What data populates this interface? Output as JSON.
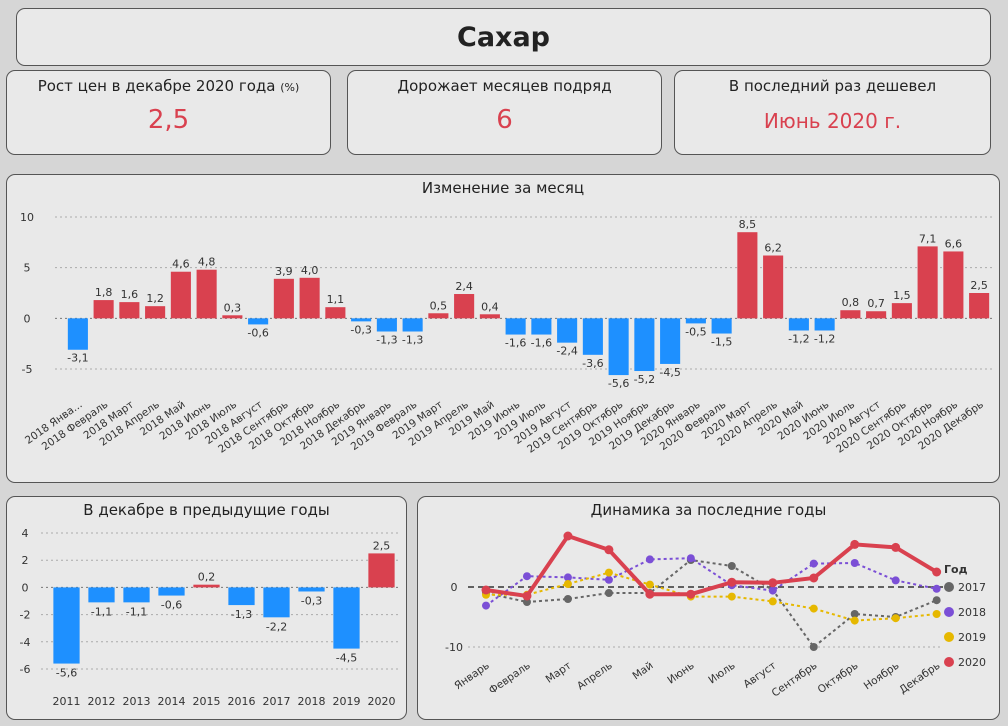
{
  "header": {
    "title": "Сахар"
  },
  "cards": [
    {
      "label": "Рост цен в декабре 2020 года",
      "label_suffix": "(%)",
      "value": "2,5"
    },
    {
      "label": "Дорожает месяцев подряд",
      "value": "6"
    },
    {
      "label": "В последний раз дешевел",
      "value": "Июнь 2020 г."
    }
  ],
  "colors": {
    "positive": "#d9414f",
    "negative": "#1e90ff",
    "panel_bg": "#e9e9e9",
    "page_bg": "#d6d6d6"
  },
  "chart_data": [
    {
      "type": "bar",
      "title": "Изменение за месяц",
      "ylim": [
        -5,
        10
      ],
      "yticks": [
        -5,
        0,
        5,
        10
      ],
      "categories": [
        "2018 Янва...",
        "2018 Февраль",
        "2018 Март",
        "2018 Апрель",
        "2018 Май",
        "2018 Июнь",
        "2018 Июль",
        "2018 Август",
        "2018 Сентябрь",
        "2018 Октябрь",
        "2018 Ноябрь",
        "2018 Декабрь",
        "2019 Январь",
        "2019 Февраль",
        "2019 Март",
        "2019 Апрель",
        "2019 Май",
        "2019 Июнь",
        "2019 Июль",
        "2019 Август",
        "2019 Сентябрь",
        "2019 Октябрь",
        "2019 Ноябрь",
        "2019 Декабрь",
        "2020 Январь",
        "2020 Февраль",
        "2020 Март",
        "2020 Апрель",
        "2020 Май",
        "2020 Июнь",
        "2020 Июль",
        "2020 Август",
        "2020 Сентябрь",
        "2020 Октябрь",
        "2020 Ноябрь",
        "2020 Декабрь"
      ],
      "values": [
        -3.1,
        1.8,
        1.6,
        1.2,
        4.6,
        4.8,
        0.3,
        -0.6,
        3.9,
        4.0,
        1.1,
        -0.3,
        -1.3,
        -1.3,
        0.5,
        2.4,
        0.4,
        -1.6,
        -1.6,
        -2.4,
        -3.6,
        -5.6,
        -5.2,
        -4.5,
        -0.5,
        -1.5,
        8.5,
        6.2,
        -1.2,
        -1.2,
        0.8,
        0.7,
        1.5,
        7.1,
        6.6,
        2.5
      ],
      "labels": [
        "-3,1",
        "1,8",
        "1,6",
        "1,2",
        "4,6",
        "4,8",
        "0,3",
        "-0,6",
        "3,9",
        "4,0",
        "1,1",
        "-0,3",
        "-1,3",
        "-1,3",
        "0,5",
        "2,4",
        "0,4",
        "-1,6",
        "-1,6",
        "-2,4",
        "-3,6",
        "-5,6",
        "-5,2",
        "-4,5",
        "-0,5",
        "-1,5",
        "8,5",
        "6,2",
        "-1,2",
        "-1,2",
        "0,8",
        "0,7",
        "1,5",
        "7,1",
        "6,6",
        "2,5"
      ]
    },
    {
      "type": "bar",
      "title": "В декабре в предыдущие годы",
      "ylim": [
        -6,
        4
      ],
      "yticks": [
        -6,
        -4,
        -2,
        0,
        2,
        4
      ],
      "categories": [
        "2011",
        "2012",
        "2013",
        "2014",
        "2015",
        "2016",
        "2017",
        "2018",
        "2019",
        "2020"
      ],
      "values": [
        -5.6,
        -1.1,
        -1.1,
        -0.6,
        0.2,
        -1.3,
        -2.2,
        -0.3,
        -4.5,
        2.5
      ],
      "labels": [
        "-5,6",
        "-1,1",
        "-1,1",
        "-0,6",
        "0,2",
        "-1,3",
        "-2,2",
        "-0,3",
        "-4,5",
        "2,5"
      ]
    },
    {
      "type": "line",
      "title": "Динамика за последние годы",
      "legend_title": "Год",
      "legend_position": "right",
      "ylim": [
        -10,
        10
      ],
      "yticks": [
        -10,
        0
      ],
      "categories": [
        "Январь",
        "Февраль",
        "Март",
        "Апрель",
        "Май",
        "Июнь",
        "Июль",
        "Август",
        "Сентябрь",
        "Октябрь",
        "Ноябрь",
        "Декабрь"
      ],
      "series": [
        {
          "name": "2017",
          "color": "#666666",
          "values": [
            -1,
            -2.5,
            -2,
            -1,
            -1,
            4.5,
            3.5,
            -0.5,
            -10,
            -4.5,
            -5,
            -2.2
          ]
        },
        {
          "name": "2018",
          "color": "#7b4fd6",
          "values": [
            -3.1,
            1.8,
            1.6,
            1.2,
            4.6,
            4.8,
            0.3,
            -0.6,
            3.9,
            4.0,
            1.1,
            -0.3
          ]
        },
        {
          "name": "2019",
          "color": "#e6b800",
          "values": [
            -1.3,
            -1.3,
            0.5,
            2.4,
            0.4,
            -1.6,
            -1.6,
            -2.4,
            -3.6,
            -5.6,
            -5.2,
            -4.5
          ]
        },
        {
          "name": "2020",
          "color": "#d9414f",
          "values": [
            -0.5,
            -1.5,
            8.5,
            6.2,
            -1.2,
            -1.2,
            0.8,
            0.7,
            1.5,
            7.1,
            6.6,
            2.5
          ]
        }
      ]
    }
  ]
}
